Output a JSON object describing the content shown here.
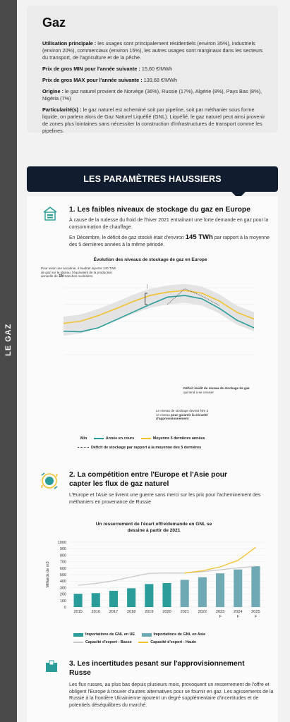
{
  "side_label": "LE GAZ",
  "card": {
    "title": "Gaz",
    "usage_label": "Utilisation principale :",
    "usage_text": " les usages sont principalement résidentiels (environ 35%), industriels (environ 20%), commerciaux (environ 15%), les autres usages sont marginaux dans les secteurs du transport, de l'agriculture et de la pêche.",
    "min_label": "Prix de gros MIN pour l'année suivante :",
    "min_value": " 15,60 €/MWh",
    "max_label": "Prix de gros MAX pour l'année suivante :",
    "max_value": " 139,68 €/MWh",
    "origin_label": "Origine :",
    "origin_text": " le gaz naturel provient de Norvège (36%), Russie (17%), Algérie (8%), Pays Bas (8%), Nigéria (7%)",
    "particular_label": "Particularité(s) :",
    "particular_text": " le gaz naturel est acheminé soit par pipeline, soit par méthanier sous forme liquide, on parlera alors de Gaz Naturel Liquéfié (GNL). Liquéfié, le gaz naturel peut ainsi provenir de zones plus lointaines sans nécessiter la construction d'infrastructures de transport comme les pipelines."
  },
  "banner": {
    "title": "LES PARAMÈTRES HAUSSIERS"
  },
  "section1": {
    "title": "1. Les faibles niveaux de stockage du gaz en Europe",
    "text1": "À cause de la rudesse du froid de l'hiver 2021 entraînant une forte demande en gaz pour la consommation de chauffage.",
    "text2_a": "En Décembre, le déficit de gaz stocké était d'environ ",
    "text2_b": "145 TWh",
    "text2_c": " par rapport à la moyenne des 5 dernières années à la même période."
  },
  "chart1": {
    "title": "Évolution des niveaux de stockage de gaz en Europe",
    "annotation_top_a": "Pour avoir une accalmie, il faudrait injecter 140 TWh de gaz sur le réseau, l'équivalent de la production annuelle de ",
    "annotation_top_b": "15",
    "annotation_top_c": " tranches nucléaires",
    "annotation_deficit_a": "Déficit inédit du niveau de stockage de gaz",
    "annotation_deficit_b": " qui tend à se creuser",
    "annotation_level_a": "Le niveau de stockage devrait être à ce niveau ",
    "annotation_level_b": "pour garantir la sécurité d'approvisionnement",
    "legend_min": "Min",
    "legend_current": "Année en cours",
    "legend_average": "Moyenne 5 dernières années",
    "legend_deficit": "Déficit de stockage par rapport à la moyenne des 5 dernières",
    "colors": {
      "current": "#2a9d9a",
      "average": "#f2c230",
      "range": "#e3e3e3",
      "deficit": "#444444"
    }
  },
  "chart_data": [
    {
      "type": "line",
      "title": "Évolution des niveaux de stockage de gaz en Europe",
      "x": [
        1,
        2,
        3,
        4,
        5,
        6,
        7,
        8,
        9,
        10,
        11,
        12
      ],
      "ylim": [
        0,
        1200
      ],
      "series": [
        {
          "name": "Année en cours",
          "values": [
            420,
            410,
            480,
            620,
            760,
            900,
            1030,
            1060,
            1000,
            830,
            620,
            480
          ]
        },
        {
          "name": "Moyenne 5 dernières années",
          "values": [
            560,
            600,
            700,
            820,
            950,
            1060,
            1120,
            1150,
            1100,
            960,
            760,
            640
          ]
        },
        {
          "name": "Déficit de stockage par rapport à la moyenne des 5 dernières",
          "values": [
            null,
            null,
            null,
            null,
            null,
            null,
            900,
            1180,
            1050,
            880,
            null,
            null
          ]
        }
      ]
    },
    {
      "type": "bar",
      "title": "Un resserrement de l'écart offre/demande en GNL se dessine à partir de 2021",
      "ylabel": "Milliards de m3",
      "ylim": [
        0,
        1000
      ],
      "categories": [
        "2015",
        "2016",
        "2017",
        "2018",
        "2019",
        "2020",
        "2021",
        "2022",
        "2023",
        "2024",
        "2025"
      ],
      "category_notes": [
        "",
        "",
        "",
        "",
        "",
        "",
        "",
        "",
        "F",
        "F",
        "F"
      ],
      "yticks": [
        0,
        100,
        200,
        300,
        400,
        500,
        600,
        700,
        800,
        900,
        1000
      ],
      "series": [
        {
          "name": "Importations de GNL en UE",
          "type": "bar",
          "values": [
            205,
            215,
            250,
            290,
            355,
            370,
            null,
            null,
            null,
            null,
            null
          ]
        },
        {
          "name": "Importations de GNL en Asie",
          "type": "bar",
          "values": [
            null,
            null,
            null,
            null,
            null,
            null,
            420,
            460,
            520,
            580,
            630
          ]
        },
        {
          "name": "Capacité d'export - Basse",
          "type": "line",
          "values": [
            335,
            365,
            405,
            465,
            520,
            525,
            525,
            545,
            575,
            605,
            630
          ]
        },
        {
          "name": "Capacité d'export - Haute",
          "type": "line",
          "values": [
            null,
            null,
            null,
            null,
            null,
            null,
            525,
            560,
            620,
            720,
            920
          ]
        }
      ],
      "colors": {
        "eu": "#2a9d9a",
        "asia": "#6fa9b3",
        "low": "#c8c8c8",
        "high": "#f2c230"
      }
    }
  ],
  "section2": {
    "title_l1": "2. La compétition entre l'Europe et l'Asie pour",
    "title_l2": "capter les flux de gaz naturel",
    "text": "L'Europe et l'Asie se livrent une guerre sans merci sur les prix pour l'acheminement des méthaniers en provenance de Russie"
  },
  "chart2": {
    "title_l1": "Un resserrement de l'écart offre/demande en GNL se",
    "title_l2": "dessine à partir de 2021",
    "legend_eu": "Importations de GNL en UE",
    "legend_asia": "Importations de GNL en Asie",
    "legend_low": "Capacité d'export - Basse",
    "legend_high": "Capacité d'export - Haute"
  },
  "section3": {
    "title_l1": "3. Les incertitudes pesant sur l'approvisionnement",
    "title_l2": "Russe",
    "text": "Les flux russes, au plus bas depuis plusieurs mois, provoquent un resserrement de l'offre et obligent l'Europe à trouver d'autres alternatives pour se fournir en gaz. Les agissements de la Russie à la frontière Ukrainienne ajoutent un degré supplémentaire d'incertitudes et de potentiels déséquilibres du marché."
  }
}
